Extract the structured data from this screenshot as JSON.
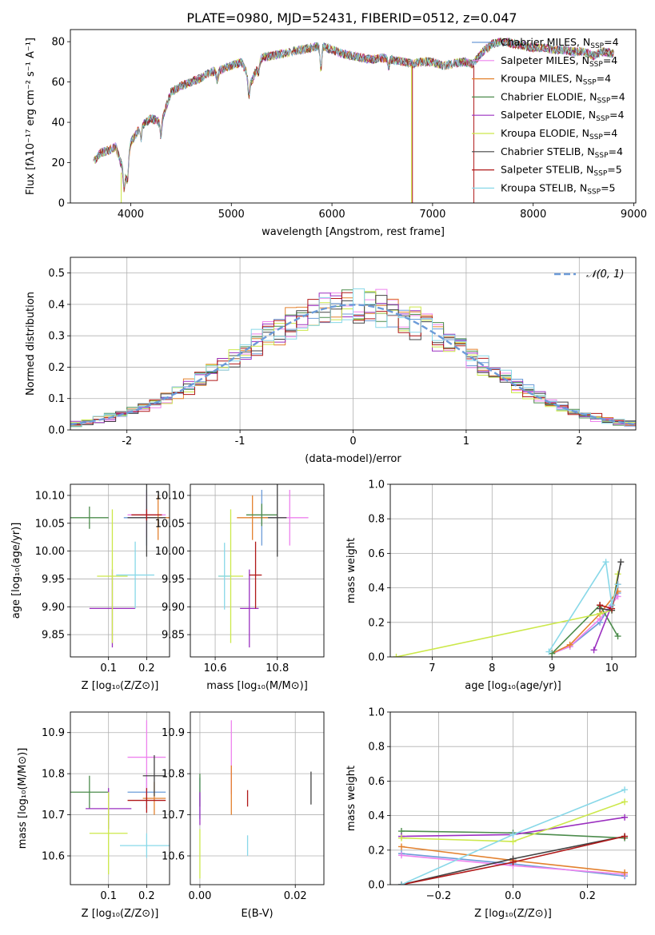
{
  "figure": {
    "title": "PLATE=0980, MJD=52431, FIBERID=0512, z=0.047"
  },
  "colors": {
    "Chabrier MILES": "#6c9bd8",
    "Salpeter MILES": "#ee82ee",
    "Kroupa MILES": "#e3812e",
    "Chabrier ELODIE": "#4c8c4c",
    "Salpeter ELODIE": "#9b30c0",
    "Kroupa ELODIE": "#cce84a",
    "Chabrier STELIB": "#444444",
    "Salpeter STELIB": "#b01818",
    "Kroupa STELIB": "#88d8e8",
    "normal": "#6c9bd8",
    "grid": "#b0b0b0"
  },
  "chart_data": [
    {
      "id": "spectrum",
      "type": "line",
      "title": "PLATE=0980, MJD=52431, FIBERID=0512, z=0.047",
      "xlabel": "wavelength [Angstrom, rest frame]",
      "ylabel": "Flux [fλ10⁻¹⁷ erg cm⁻² s⁻¹ A⁻¹]",
      "xlim": [
        3400,
        9020
      ],
      "ylim": [
        0,
        86
      ],
      "xticks": [
        4000,
        5000,
        6000,
        7000,
        8000,
        9000
      ],
      "yticks": [
        0,
        20,
        40,
        60,
        80
      ],
      "grid": false,
      "legend_position": "top-right",
      "legend": [
        {
          "name": "Chabrier MILES",
          "sub": "SSP",
          "n": 4
        },
        {
          "name": "Salpeter MILES",
          "sub": "SSP",
          "n": 4
        },
        {
          "name": "Kroupa MILES",
          "sub": "SSP",
          "n": 4
        },
        {
          "name": "Chabrier ELODIE",
          "sub": "SSP",
          "n": 4
        },
        {
          "name": "Salpeter ELODIE",
          "sub": "SSP",
          "n": 4
        },
        {
          "name": "Kroupa ELODIE",
          "sub": "SSP",
          "n": 4
        },
        {
          "name": "Chabrier STELIB",
          "sub": "SSP",
          "n": 4
        },
        {
          "name": "Salpeter STELIB",
          "sub": "SSP",
          "n": 5
        },
        {
          "name": "Kroupa STELIB",
          "sub": "SSP",
          "n": 5
        }
      ],
      "x": [
        3630,
        3700,
        3780,
        3850,
        3900,
        3950,
        4000,
        4100,
        4200,
        4300,
        4400,
        4500,
        4600,
        4700,
        4800,
        4900,
        5000,
        5100,
        5200,
        5300,
        5400,
        5500,
        5600,
        5700,
        5800,
        5900,
        6000,
        6100,
        6200,
        6300,
        6400,
        6500,
        6600,
        6700,
        6800,
        6900,
        7000,
        7100,
        7200,
        7300,
        7400,
        7500,
        7600,
        7700,
        7800,
        7900,
        8000,
        8100,
        8200,
        8300,
        8400,
        8500,
        8600,
        8700,
        8800
      ],
      "series_y": [
        20,
        25,
        26,
        28,
        20,
        15,
        30,
        38,
        42,
        40,
        55,
        58,
        60,
        62,
        65,
        66,
        68,
        70,
        60,
        72,
        73,
        74,
        75,
        76,
        77,
        78,
        76,
        74,
        73,
        72,
        71,
        72,
        71,
        70,
        69,
        70,
        70,
        68,
        69,
        70,
        69,
        75,
        79,
        80,
        79,
        78,
        77,
        77,
        76,
        76,
        75,
        75,
        73,
        75,
        74
      ],
      "truncated_spikes": [
        {
          "series": "Kroupa ELODIE",
          "x": 3905,
          "from_y": 15
        },
        {
          "series": "Kroupa ELODIE",
          "x": 6790,
          "from_y": 68
        },
        {
          "series": "Salpeter STELIB",
          "x": 6800,
          "from_y": 68
        },
        {
          "series": "Salpeter STELIB",
          "x": 7410,
          "from_y": 68
        }
      ]
    },
    {
      "id": "residuals",
      "type": "step",
      "xlabel": "(data-model)/error",
      "ylabel": "Normed distribution",
      "xlim": [
        -2.5,
        2.5
      ],
      "ylim": [
        0,
        0.55
      ],
      "xticks": [
        -2,
        -1,
        0,
        1,
        2
      ],
      "yticks": [
        0.0,
        0.1,
        0.2,
        0.3,
        0.4,
        0.5
      ],
      "grid": true,
      "legend_position": "top-right",
      "legend": [
        "𝒩(0, 1)"
      ],
      "bin_width": 0.1,
      "x_start": -2.5
    },
    {
      "id": "age_Z",
      "type": "errorbar",
      "xlabel": "Z [log₁₀(Z/Z⊙)]",
      "ylabel": "age  [log₁₀(age/yr)]",
      "xlim": [
        0.0,
        0.26
      ],
      "ylim": [
        9.81,
        10.12
      ],
      "xticks": [
        0.1,
        0.2
      ],
      "yticks": [
        9.85,
        9.9,
        9.95,
        10.0,
        10.05,
        10.1
      ],
      "grid": true,
      "points": [
        {
          "series": "Chabrier MILES",
          "x": 0.2,
          "y": 10.06,
          "xerr": 0.06,
          "yerr": 0.05
        },
        {
          "series": "Salpeter MILES",
          "x": 0.2,
          "y": 10.065,
          "xerr": 0.05,
          "yerr": 0.04
        },
        {
          "series": "Kroupa MILES",
          "x": 0.23,
          "y": 10.06,
          "xerr": 0.03,
          "yerr": 0.04
        },
        {
          "series": "Chabrier ELODIE",
          "x": 0.05,
          "y": 10.06,
          "xerr": 0.05,
          "yerr": 0.02
        },
        {
          "series": "Salpeter ELODIE",
          "x": 0.11,
          "y": 9.897,
          "xerr": 0.06,
          "yerr": 0.07
        },
        {
          "series": "Kroupa ELODIE",
          "x": 0.11,
          "y": 9.955,
          "xerr": 0.04,
          "yerr": 0.12
        },
        {
          "series": "Chabrier STELIB",
          "x": 0.2,
          "y": 10.06,
          "xerr": 0.05,
          "yerr": 0.07
        },
        {
          "series": "Salpeter STELIB",
          "x": 0.2,
          "y": 10.065,
          "xerr": 0.04,
          "yerr": 0.01
        },
        {
          "series": "Kroupa STELIB",
          "x": 0.17,
          "y": 9.957,
          "xerr": 0.05,
          "yerr": 0.06
        }
      ]
    },
    {
      "id": "age_mass",
      "type": "errorbar",
      "xlabel": "mass [log₁₀(M/M⊙)]",
      "ylabel": "",
      "xlim": [
        0.52,
        0.95
      ],
      "xlim_note": "x in mass units, offset by 10",
      "xlim_data": [
        10.52,
        10.95
      ],
      "ylim": [
        9.81,
        10.12
      ],
      "xticks": [
        10.6,
        10.8
      ],
      "xticklabels": [
        "10.6",
        "10.8"
      ],
      "yticks": [
        9.85,
        9.9,
        9.95,
        10.0,
        10.05,
        10.1
      ],
      "grid": true,
      "points": [
        {
          "series": "Chabrier MILES",
          "x": 10.75,
          "y": 10.06,
          "xerr": 0.04,
          "yerr": 0.05
        },
        {
          "series": "Salpeter MILES",
          "x": 10.84,
          "y": 10.06,
          "xerr": 0.06,
          "yerr": 0.05
        },
        {
          "series": "Kroupa MILES",
          "x": 10.72,
          "y": 10.06,
          "xerr": 0.05,
          "yerr": 0.04
        },
        {
          "series": "Chabrier ELODIE",
          "x": 10.75,
          "y": 10.065,
          "xerr": 0.05,
          "yerr": 0.02
        },
        {
          "series": "Salpeter ELODIE",
          "x": 10.71,
          "y": 9.897,
          "xerr": 0.03,
          "yerr": 0.07
        },
        {
          "series": "Kroupa ELODIE",
          "x": 10.65,
          "y": 9.955,
          "xerr": 0.04,
          "yerr": 0.12
        },
        {
          "series": "Chabrier STELIB",
          "x": 10.8,
          "y": 10.06,
          "xerr": 0.03,
          "yerr": 0.07
        },
        {
          "series": "Salpeter STELIB",
          "x": 10.73,
          "y": 9.957,
          "xerr": 0.02,
          "yerr": 0.06
        },
        {
          "series": "Kroupa STELIB",
          "x": 10.63,
          "y": 9.955,
          "xerr": 0.02,
          "yerr": 0.06
        }
      ]
    },
    {
      "id": "weight_age",
      "type": "line",
      "xlabel": "age  [log₁₀(age/yr)]",
      "ylabel": "mass weight",
      "xlim": [
        6.3,
        10.4
      ],
      "ylim": [
        0.0,
        1.0
      ],
      "xticks": [
        7,
        8,
        9,
        10
      ],
      "yticks": [
        0.0,
        0.2,
        0.4,
        0.6,
        0.8,
        1.0
      ],
      "grid": true,
      "series": [
        {
          "name": "Chabrier MILES",
          "x": [
            9.0,
            9.3,
            9.8,
            10.1
          ],
          "y": [
            0.02,
            0.06,
            0.2,
            0.37
          ]
        },
        {
          "name": "Salpeter MILES",
          "x": [
            9.0,
            9.3,
            9.8,
            10.1
          ],
          "y": [
            0.02,
            0.06,
            0.22,
            0.35
          ]
        },
        {
          "name": "Kroupa MILES",
          "x": [
            9.0,
            9.3,
            9.8,
            10.1
          ],
          "y": [
            0.02,
            0.07,
            0.25,
            0.38
          ]
        },
        {
          "name": "Chabrier ELODIE",
          "x": [
            9.0,
            9.8,
            10.1
          ],
          "y": [
            0.02,
            0.3,
            0.12
          ]
        },
        {
          "name": "Salpeter ELODIE",
          "x": [
            9.7,
            10.0,
            10.1
          ],
          "y": [
            0.04,
            0.3,
            0.42
          ]
        },
        {
          "name": "Kroupa ELODIE",
          "x": [
            6.4,
            9.8,
            10.0,
            10.1
          ],
          "y": [
            0.0,
            0.25,
            0.27,
            0.48
          ]
        },
        {
          "name": "Chabrier STELIB",
          "x": [
            9.8,
            10.0,
            10.15
          ],
          "y": [
            0.28,
            0.27,
            0.55
          ]
        },
        {
          "name": "Salpeter STELIB",
          "x": [
            9.8,
            10.0,
            10.1
          ],
          "y": [
            0.3,
            0.28,
            0.42
          ]
        },
        {
          "name": "Kroupa STELIB",
          "x": [
            8.95,
            9.9,
            10.0,
            10.1
          ],
          "y": [
            0.03,
            0.55,
            0.3,
            0.42
          ]
        }
      ]
    },
    {
      "id": "mass_Z",
      "type": "errorbar",
      "xlabel": "Z [log₁₀(Z/Z⊙)]",
      "ylabel": "mass [log₁₀(M/M⊙)]",
      "xlim": [
        0.0,
        0.26
      ],
      "ylim": [
        10.53,
        10.95
      ],
      "xticks": [
        0.1,
        0.2
      ],
      "yticks": [
        10.6,
        10.7,
        10.8,
        10.9
      ],
      "grid": true,
      "points": [
        {
          "series": "Chabrier MILES",
          "x": 0.2,
          "y": 10.755,
          "xerr": 0.05,
          "yerr": 0.04
        },
        {
          "series": "Salpeter MILES",
          "x": 0.2,
          "y": 10.84,
          "xerr": 0.05,
          "yerr": 0.09
        },
        {
          "series": "Kroupa MILES",
          "x": 0.22,
          "y": 10.74,
          "xerr": 0.03,
          "yerr": 0.04
        },
        {
          "series": "Chabrier ELODIE",
          "x": 0.05,
          "y": 10.755,
          "xerr": 0.05,
          "yerr": 0.04
        },
        {
          "series": "Salpeter ELODIE",
          "x": 0.1,
          "y": 10.715,
          "xerr": 0.06,
          "yerr": 0.05
        },
        {
          "series": "Kroupa ELODIE",
          "x": 0.1,
          "y": 10.655,
          "xerr": 0.05,
          "yerr": 0.1
        },
        {
          "series": "Chabrier STELIB",
          "x": 0.22,
          "y": 10.795,
          "xerr": 0.03,
          "yerr": 0.05
        },
        {
          "series": "Salpeter STELIB",
          "x": 0.2,
          "y": 10.735,
          "xerr": 0.05,
          "yerr": 0.03
        },
        {
          "series": "Kroupa STELIB",
          "x": 0.2,
          "y": 10.625,
          "xerr": 0.07,
          "yerr": 0.03
        }
      ]
    },
    {
      "id": "mass_EBV",
      "type": "errorbar",
      "xlabel": "E(B-V)",
      "ylabel": "",
      "xlim": [
        -0.002,
        0.026
      ],
      "ylim": [
        10.53,
        10.95
      ],
      "xticks": [
        0.0,
        0.02
      ],
      "xticklabels": [
        "0.00",
        "0.02"
      ],
      "yticks": [
        10.6,
        10.7,
        10.8,
        10.9
      ],
      "grid": true,
      "points": [
        {
          "series": "Chabrier MILES",
          "x": 0.0,
          "y": 10.74,
          "xerr": 0,
          "yerr": 0.05
        },
        {
          "series": "Salpeter MILES",
          "x": 0.0066,
          "y": 10.84,
          "xerr": 0,
          "yerr": 0.09
        },
        {
          "series": "Kroupa MILES",
          "x": 0.0066,
          "y": 10.76,
          "xerr": 0,
          "yerr": 0.06
        },
        {
          "series": "Chabrier ELODIE",
          "x": 0.0,
          "y": 10.76,
          "xerr": 0,
          "yerr": 0.04
        },
        {
          "series": "Salpeter ELODIE",
          "x": 0.0,
          "y": 10.715,
          "xerr": 0,
          "yerr": 0.04
        },
        {
          "series": "Kroupa ELODIE",
          "x": 0.0,
          "y": 10.605,
          "xerr": 0,
          "yerr": 0.06
        },
        {
          "series": "Chabrier STELIB",
          "x": 0.0233,
          "y": 10.765,
          "xerr": 0,
          "yerr": 0.04
        },
        {
          "series": "Salpeter STELIB",
          "x": 0.01,
          "y": 10.74,
          "xerr": 0,
          "yerr": 0.02
        },
        {
          "series": "Kroupa STELIB",
          "x": 0.01,
          "y": 10.625,
          "xerr": 0,
          "yerr": 0.025
        }
      ]
    },
    {
      "id": "weight_Z",
      "type": "line",
      "xlabel": "Z [log₁₀(Z/Z⊙)]",
      "ylabel": "mass weight",
      "xlim": [
        -0.33,
        0.33
      ],
      "ylim": [
        0.0,
        1.0
      ],
      "xticks": [
        -0.2,
        0.0,
        0.2
      ],
      "xticklabels": [
        "−0.2",
        "0.0",
        "0.2"
      ],
      "yticks": [
        0.0,
        0.2,
        0.4,
        0.6,
        0.8,
        1.0
      ],
      "grid": true,
      "series": [
        {
          "name": "Chabrier MILES",
          "x": [
            -0.3,
            0.0,
            0.3
          ],
          "y": [
            0.18,
            0.12,
            0.05
          ]
        },
        {
          "name": "Salpeter MILES",
          "x": [
            -0.3,
            0.0,
            0.3
          ],
          "y": [
            0.17,
            0.11,
            0.06
          ]
        },
        {
          "name": "Kroupa MILES",
          "x": [
            -0.3,
            0.0,
            0.3
          ],
          "y": [
            0.22,
            0.14,
            0.07
          ]
        },
        {
          "name": "Chabrier ELODIE",
          "x": [
            -0.3,
            0.0,
            0.3
          ],
          "y": [
            0.31,
            0.3,
            0.27
          ]
        },
        {
          "name": "Salpeter ELODIE",
          "x": [
            -0.3,
            0.0,
            0.3
          ],
          "y": [
            0.28,
            0.29,
            0.39
          ]
        },
        {
          "name": "Kroupa ELODIE",
          "x": [
            -0.3,
            0.0,
            0.3
          ],
          "y": [
            0.27,
            0.25,
            0.48
          ]
        },
        {
          "name": "Chabrier STELIB",
          "x": [
            -0.3,
            0.0,
            0.3
          ],
          "y": [
            0.0,
            0.15,
            0.28
          ]
        },
        {
          "name": "Salpeter STELIB",
          "x": [
            -0.3,
            0.0,
            0.3
          ],
          "y": [
            0.0,
            0.13,
            0.28
          ]
        },
        {
          "name": "Kroupa STELIB",
          "x": [
            -0.3,
            0.0,
            0.3
          ],
          "y": [
            0.0,
            0.29,
            0.55
          ]
        }
      ]
    }
  ]
}
